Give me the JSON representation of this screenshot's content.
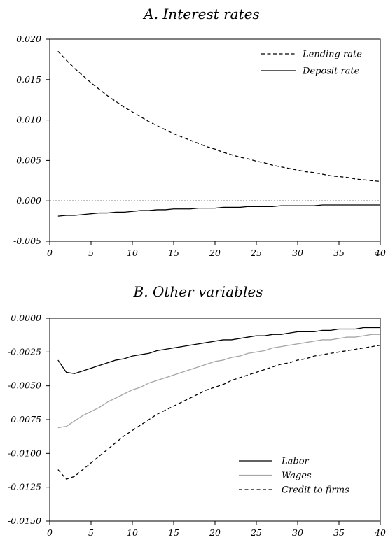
{
  "chart_data": [
    {
      "type": "line",
      "title": "A. Interest rates",
      "xlabel": "",
      "ylabel": "",
      "xlim": [
        0,
        40
      ],
      "ylim": [
        -0.005,
        0.02
      ],
      "xticks": [
        0,
        5,
        10,
        15,
        20,
        25,
        30,
        35,
        40
      ],
      "xtick_labels": [
        "0",
        "5",
        "10",
        "15",
        "20",
        "25",
        "30",
        "35",
        "40"
      ],
      "yticks": [
        -0.005,
        0.0,
        0.005,
        0.01,
        0.015,
        0.02
      ],
      "ytick_labels": [
        "-0.005",
        "0.000",
        "0.005",
        "0.010",
        "0.015",
        "0.020"
      ],
      "grid": false,
      "zero_line": true,
      "legend_position": "top-right",
      "series": [
        {
          "name": "Lending rate",
          "style": "dashed",
          "color": "#000000",
          "x": [
            1,
            2,
            3,
            4,
            5,
            6,
            7,
            8,
            9,
            10,
            11,
            12,
            13,
            14,
            15,
            16,
            17,
            18,
            19,
            20,
            21,
            22,
            23,
            24,
            25,
            26,
            27,
            28,
            29,
            30,
            31,
            32,
            33,
            34,
            35,
            36,
            37,
            38,
            39,
            40
          ],
          "y": [
            0.0185,
            0.0174,
            0.0164,
            0.0155,
            0.0146,
            0.0138,
            0.013,
            0.0123,
            0.0116,
            0.011,
            0.0104,
            0.0098,
            0.0093,
            0.0088,
            0.0083,
            0.0079,
            0.0075,
            0.0071,
            0.0067,
            0.0064,
            0.006,
            0.0057,
            0.0054,
            0.0052,
            0.0049,
            0.0047,
            0.0044,
            0.0042,
            0.004,
            0.0038,
            0.0036,
            0.0035,
            0.0033,
            0.0031,
            0.003,
            0.0029,
            0.0027,
            0.0026,
            0.0025,
            0.0024
          ]
        },
        {
          "name": "Deposit rate",
          "style": "solid",
          "color": "#000000",
          "x": [
            1,
            2,
            3,
            4,
            5,
            6,
            7,
            8,
            9,
            10,
            11,
            12,
            13,
            14,
            15,
            16,
            17,
            18,
            19,
            20,
            21,
            22,
            23,
            24,
            25,
            26,
            27,
            28,
            29,
            30,
            31,
            32,
            33,
            34,
            35,
            36,
            37,
            38,
            39,
            40
          ],
          "y": [
            -0.0019,
            -0.0018,
            -0.0018,
            -0.0017,
            -0.0016,
            -0.0015,
            -0.0015,
            -0.0014,
            -0.0014,
            -0.0013,
            -0.0012,
            -0.0012,
            -0.0011,
            -0.0011,
            -0.001,
            -0.001,
            -0.001,
            -0.0009,
            -0.0009,
            -0.0009,
            -0.0008,
            -0.0008,
            -0.0008,
            -0.0007,
            -0.0007,
            -0.0007,
            -0.0007,
            -0.0006,
            -0.0006,
            -0.0006,
            -0.0006,
            -0.0006,
            -0.0005,
            -0.0005,
            -0.0005,
            -0.0005,
            -0.0005,
            -0.0005,
            -0.0005,
            -0.0005
          ]
        }
      ]
    },
    {
      "type": "line",
      "title": "B. Other variables",
      "xlabel": "",
      "ylabel": "",
      "xlim": [
        0,
        40
      ],
      "ylim": [
        -0.015,
        0.0
      ],
      "xticks": [
        0,
        5,
        10,
        15,
        20,
        25,
        30,
        35,
        40
      ],
      "xtick_labels": [
        "0",
        "5",
        "10",
        "15",
        "20",
        "25",
        "30",
        "35",
        "40"
      ],
      "yticks": [
        -0.015,
        -0.0125,
        -0.01,
        -0.0075,
        -0.005,
        -0.0025,
        0.0
      ],
      "ytick_labels": [
        "-0.0150",
        "-0.0125",
        "-0.0100",
        "-0.0075",
        "-0.0050",
        "-0.0025",
        "0.0000"
      ],
      "grid": false,
      "zero_line": false,
      "legend_position": "bottom-right",
      "series": [
        {
          "name": "Labor",
          "style": "solid",
          "color": "#000000",
          "x": [
            1,
            2,
            3,
            4,
            5,
            6,
            7,
            8,
            9,
            10,
            11,
            12,
            13,
            14,
            15,
            16,
            17,
            18,
            19,
            20,
            21,
            22,
            23,
            24,
            25,
            26,
            27,
            28,
            29,
            30,
            31,
            32,
            33,
            34,
            35,
            36,
            37,
            38,
            39,
            40
          ],
          "y": [
            -0.0031,
            -0.004,
            -0.0041,
            -0.0039,
            -0.0037,
            -0.0035,
            -0.0033,
            -0.0031,
            -0.003,
            -0.0028,
            -0.0027,
            -0.0026,
            -0.0024,
            -0.0023,
            -0.0022,
            -0.0021,
            -0.002,
            -0.0019,
            -0.0018,
            -0.0017,
            -0.0016,
            -0.0016,
            -0.0015,
            -0.0014,
            -0.0013,
            -0.0013,
            -0.0012,
            -0.0012,
            -0.0011,
            -0.001,
            -0.001,
            -0.001,
            -0.0009,
            -0.0009,
            -0.0008,
            -0.0008,
            -0.0008,
            -0.0007,
            -0.0007,
            -0.0007
          ]
        },
        {
          "name": "Wages",
          "style": "solid",
          "color": "#a6a6a6",
          "x": [
            1,
            2,
            3,
            4,
            5,
            6,
            7,
            8,
            9,
            10,
            11,
            12,
            13,
            14,
            15,
            16,
            17,
            18,
            19,
            20,
            21,
            22,
            23,
            24,
            25,
            26,
            27,
            28,
            29,
            30,
            31,
            32,
            33,
            34,
            35,
            36,
            37,
            38,
            39,
            40
          ],
          "y": [
            -0.0081,
            -0.008,
            -0.0076,
            -0.0072,
            -0.0069,
            -0.0066,
            -0.0062,
            -0.0059,
            -0.0056,
            -0.0053,
            -0.0051,
            -0.0048,
            -0.0046,
            -0.0044,
            -0.0042,
            -0.004,
            -0.0038,
            -0.0036,
            -0.0034,
            -0.0032,
            -0.0031,
            -0.0029,
            -0.0028,
            -0.0026,
            -0.0025,
            -0.0024,
            -0.0022,
            -0.0021,
            -0.002,
            -0.0019,
            -0.0018,
            -0.0017,
            -0.0016,
            -0.0016,
            -0.0015,
            -0.0014,
            -0.0014,
            -0.0013,
            -0.0012,
            -0.0012
          ]
        },
        {
          "name": "Credit to firms",
          "style": "dashed",
          "color": "#000000",
          "x": [
            1,
            2,
            3,
            4,
            5,
            6,
            7,
            8,
            9,
            10,
            11,
            12,
            13,
            14,
            15,
            16,
            17,
            18,
            19,
            20,
            21,
            22,
            23,
            24,
            25,
            26,
            27,
            28,
            29,
            30,
            31,
            32,
            33,
            34,
            35,
            36,
            37,
            38,
            39,
            40
          ],
          "y": [
            -0.0112,
            -0.0119,
            -0.0117,
            -0.0112,
            -0.0107,
            -0.0102,
            -0.0097,
            -0.0092,
            -0.0087,
            -0.0083,
            -0.0079,
            -0.0075,
            -0.0071,
            -0.0068,
            -0.0065,
            -0.0062,
            -0.0059,
            -0.0056,
            -0.0053,
            -0.0051,
            -0.0049,
            -0.0046,
            -0.0044,
            -0.0042,
            -0.004,
            -0.0038,
            -0.0036,
            -0.0034,
            -0.0033,
            -0.0031,
            -0.003,
            -0.0028,
            -0.0027,
            -0.0026,
            -0.0025,
            -0.0024,
            -0.0023,
            -0.0022,
            -0.0021,
            -0.002
          ]
        }
      ]
    }
  ]
}
